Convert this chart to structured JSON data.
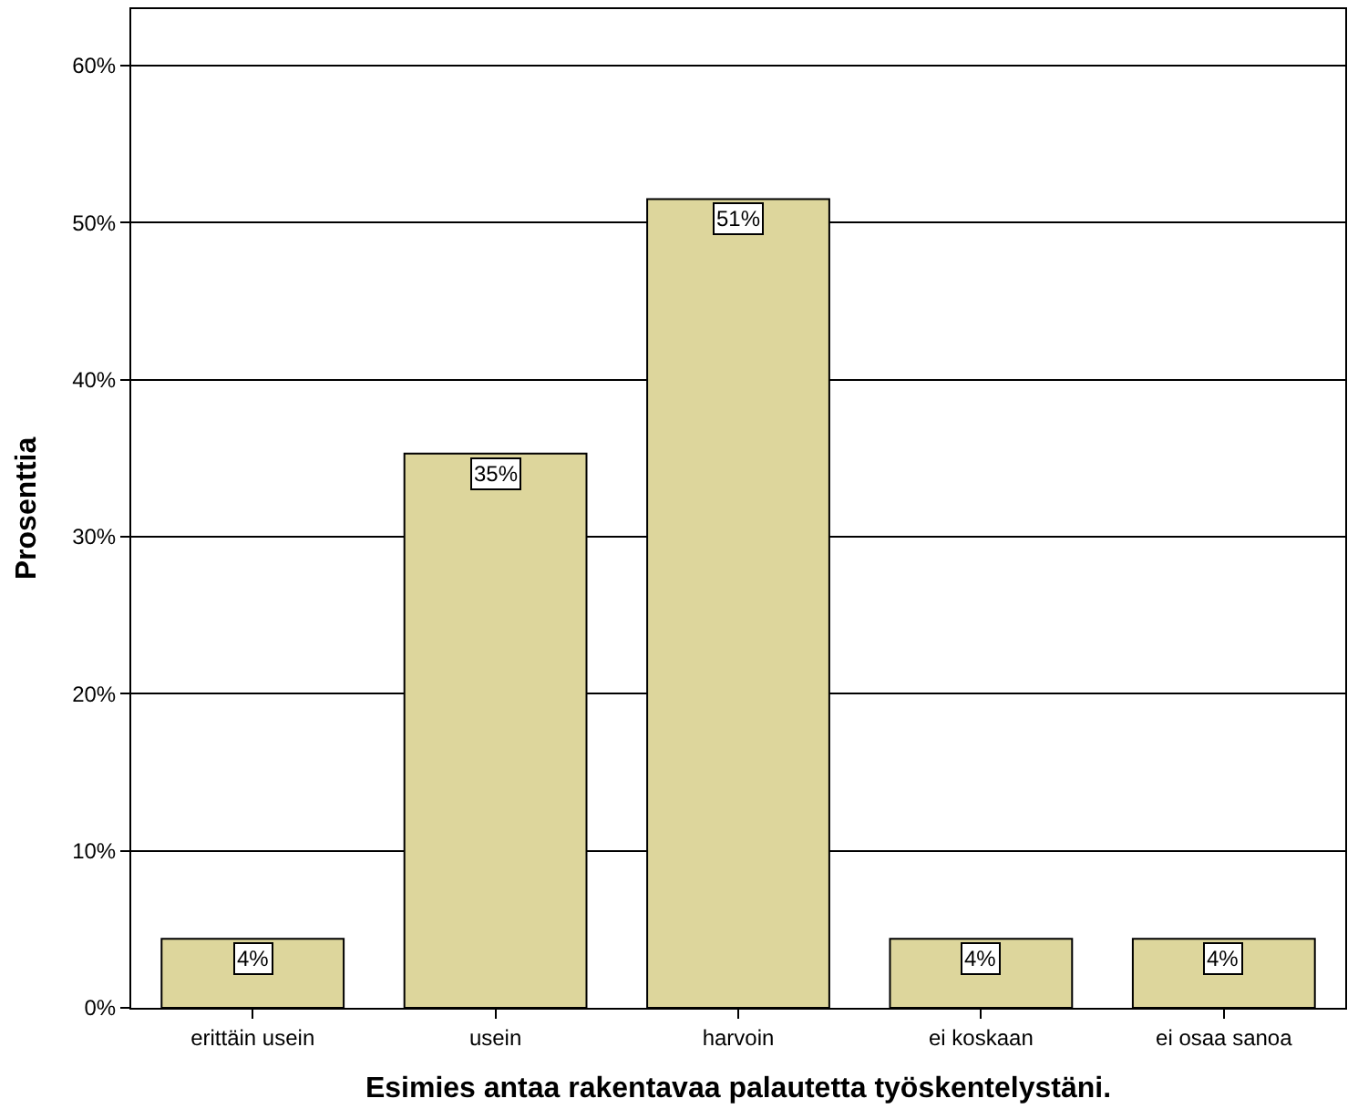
{
  "chart_data": {
    "type": "bar",
    "xlabel": "Esimies antaa rakentavaa palautetta työskentelystäni.",
    "ylabel": "Prosenttia",
    "categories": [
      "erittäin usein",
      "usein",
      "harvoin",
      "ei koskaan",
      "ei osaa sanoa"
    ],
    "values": [
      4.4,
      35.3,
      51.5,
      4.4,
      4.4
    ],
    "value_labels": [
      "4%",
      "35%",
      "51%",
      "4%",
      "4%"
    ],
    "color": "#ddd69c",
    "ylim": [
      0,
      63.6
    ],
    "yticks": [
      {
        "value": 0,
        "label": "0%"
      },
      {
        "value": 10,
        "label": "10%"
      },
      {
        "value": 20,
        "label": "20%"
      },
      {
        "value": 30,
        "label": "30%"
      },
      {
        "value": 40,
        "label": "40%"
      },
      {
        "value": 50,
        "label": "50%"
      },
      {
        "value": 60,
        "label": "60%"
      }
    ],
    "grid": "y",
    "legend": false
  }
}
